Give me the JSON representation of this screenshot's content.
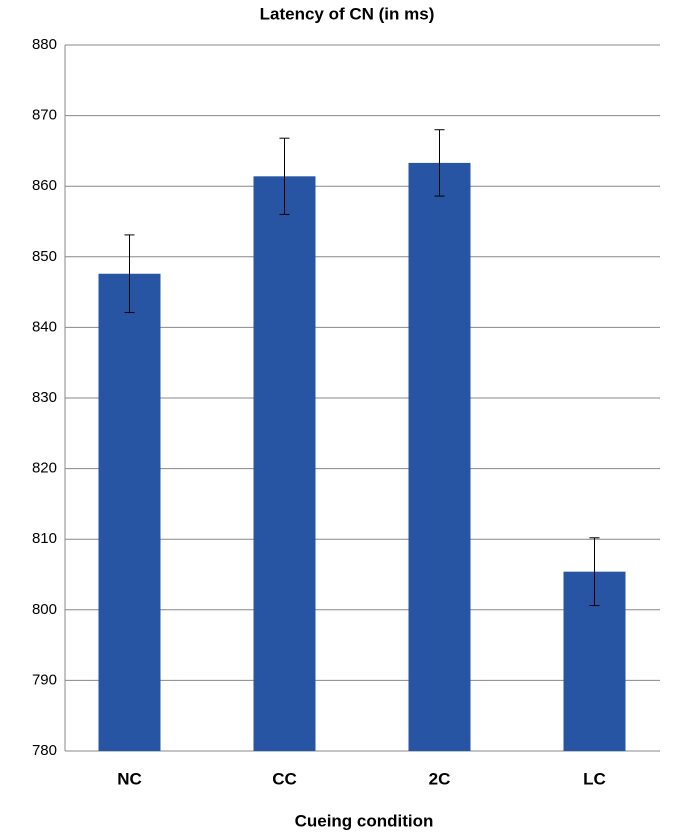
{
  "chart_data": {
    "type": "bar",
    "title": "Latency of CN (in ms)",
    "x_label": "Cueing condition",
    "categories": [
      "NC",
      "CC",
      "2C",
      "LC"
    ],
    "values": [
      847.6,
      861.4,
      863.3,
      805.4
    ],
    "errors": [
      5.5,
      5.4,
      4.7,
      4.8
    ],
    "color": "#2855a3",
    "ylim": [
      780,
      880
    ],
    "yticks": [
      780,
      790,
      800,
      810,
      820,
      830,
      840,
      850,
      860,
      870,
      880
    ],
    "grid": true
  }
}
